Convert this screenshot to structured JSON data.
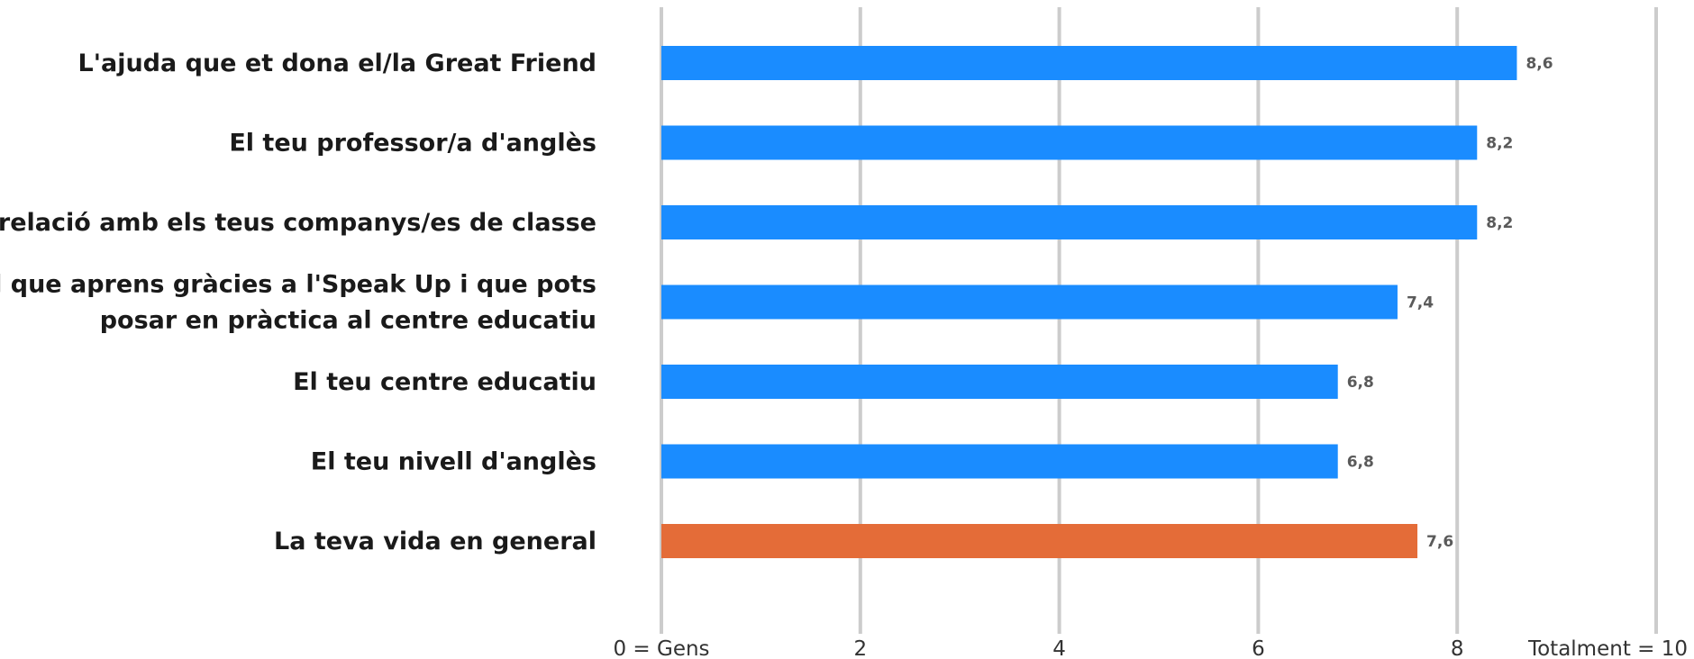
{
  "chart_data": {
    "type": "bar",
    "orientation": "horizontal",
    "categories": [
      "L'ajuda que et dona el/la Great Friend",
      "El teu professor/a d'anglès",
      "La relació amb els teus companys/es de classe",
      "El que aprens gràcies a l'Speak Up i que pots posar en pràctica al centre educatiu",
      "El teu centre educatiu",
      "El teu nivell d'anglès",
      "La teva vida en general"
    ],
    "category_lines": [
      [
        "L'ajuda que et dona el/la Great Friend"
      ],
      [
        "El teu professor/a d'anglès"
      ],
      [
        "La relació amb els teus companys/es de classe"
      ],
      [
        "El que aprens gràcies a l'Speak Up i que pots",
        "posar en pràctica al centre educatiu"
      ],
      [
        "El teu centre educatiu"
      ],
      [
        "El teu nivell d'anglès"
      ],
      [
        "La teva vida en general"
      ]
    ],
    "values": [
      8.6,
      8.2,
      8.2,
      7.4,
      6.8,
      6.8,
      7.6
    ],
    "value_labels": [
      "8,6",
      "8,2",
      "8,2",
      "7,4",
      "6,8",
      "6,8",
      "7,6"
    ],
    "bar_colors": [
      "#1a8cff",
      "#1a8cff",
      "#1a8cff",
      "#1a8cff",
      "#1a8cff",
      "#1a8cff",
      "#e46c38"
    ],
    "xlim": [
      0,
      10
    ],
    "gridlines": [
      0,
      2,
      4,
      6,
      8,
      10
    ],
    "tick_labels": [
      {
        "value": 0,
        "label": "0 = Gens"
      },
      {
        "value": 2,
        "label": "2"
      },
      {
        "value": 4,
        "label": "4"
      },
      {
        "value": 6,
        "label": "6"
      },
      {
        "value": 8,
        "label": "8"
      },
      {
        "value": 10,
        "label": "Totalment = 10"
      }
    ],
    "title": "",
    "xlabel": "",
    "ylabel": "",
    "grid": true,
    "legend": "none"
  }
}
